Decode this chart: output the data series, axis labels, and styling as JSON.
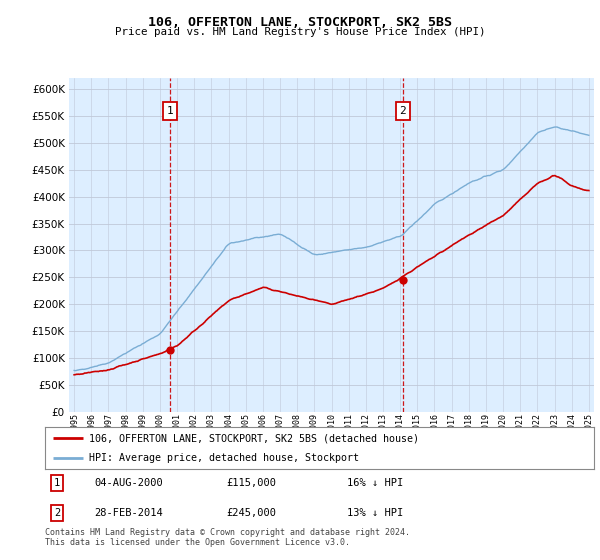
{
  "title": "106, OFFERTON LANE, STOCKPORT, SK2 5BS",
  "subtitle": "Price paid vs. HM Land Registry's House Price Index (HPI)",
  "ylim": [
    0,
    620000
  ],
  "ytick_values": [
    0,
    50000,
    100000,
    150000,
    200000,
    250000,
    300000,
    350000,
    400000,
    450000,
    500000,
    550000,
    600000
  ],
  "xstart_year": 1995,
  "xend_year": 2025,
  "sale1_year": 2000.58,
  "sale1_price": 115000,
  "sale1_label": "1",
  "sale1_date": "04-AUG-2000",
  "sale1_hpi_diff": "16% ↓ HPI",
  "sale2_year": 2014.16,
  "sale2_price": 245000,
  "sale2_label": "2",
  "sale2_date": "28-FEB-2014",
  "sale2_hpi_diff": "13% ↓ HPI",
  "legend_line1": "106, OFFERTON LANE, STOCKPORT, SK2 5BS (detached house)",
  "legend_line2": "HPI: Average price, detached house, Stockport",
  "footer": "Contains HM Land Registry data © Crown copyright and database right 2024.\nThis data is licensed under the Open Government Licence v3.0.",
  "red_color": "#cc0000",
  "blue_color": "#7aadd4",
  "bg_color": "#ddeeff",
  "grid_color": "#c0c8d8"
}
